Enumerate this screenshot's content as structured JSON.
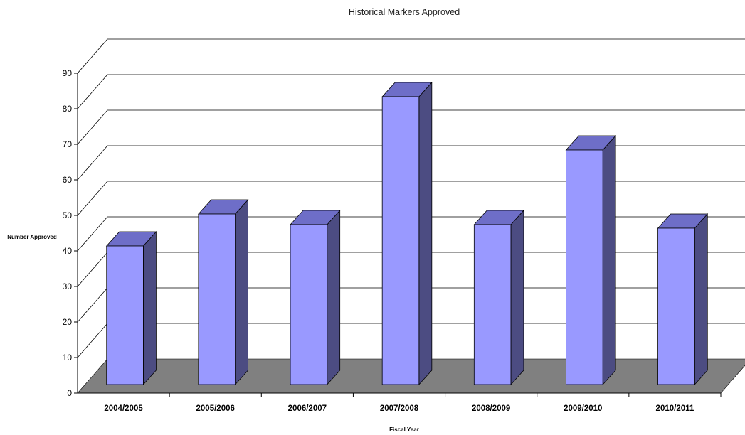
{
  "chart_data": {
    "type": "bar",
    "title": "Historical Markers Approved",
    "xlabel": "Fiscal Year",
    "ylabel": "Number Approved",
    "categories": [
      "2004/2005",
      "2005/2006",
      "2006/2007",
      "2007/2008",
      "2008/2009",
      "2009/2010",
      "2010/2011"
    ],
    "values": [
      39,
      48,
      45,
      81,
      45,
      66,
      44
    ],
    "ylim": [
      0,
      90
    ],
    "yticks": [
      0,
      10,
      20,
      30,
      40,
      50,
      60,
      70,
      80,
      90
    ],
    "grid": true,
    "style": "3d",
    "colors": {
      "bar_front": "#9999ff",
      "bar_top": "#6e6ec8",
      "bar_side": "#4c4c82",
      "floor": "#808080",
      "gridline": "#000000"
    }
  }
}
